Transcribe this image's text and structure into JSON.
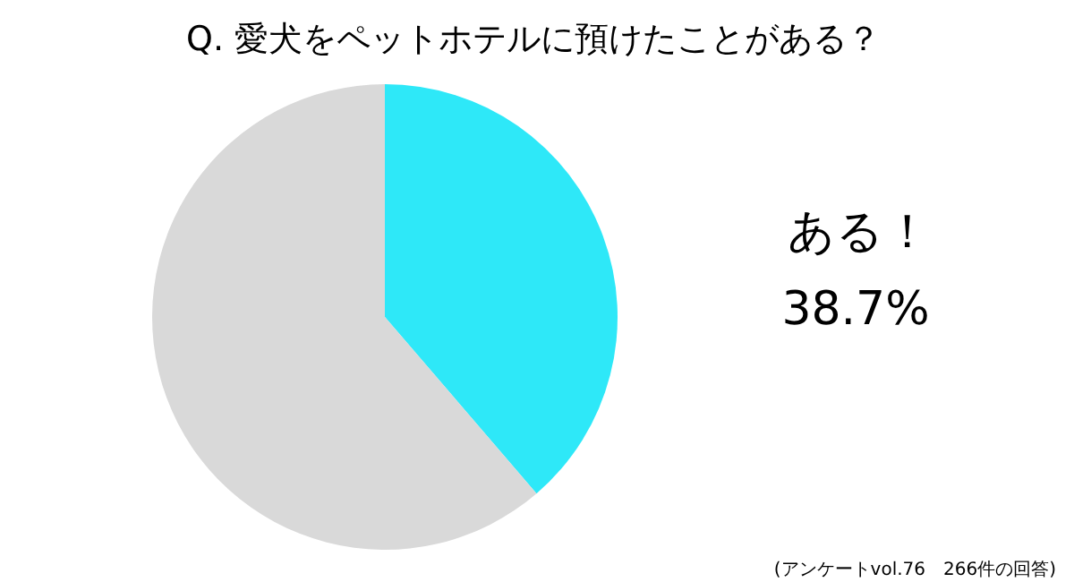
{
  "chart_data": {
    "type": "pie",
    "title": "Q.  愛犬をペットホテルに預けたことがある？",
    "categories": [
      "ある！",
      null
    ],
    "values": [
      38.7,
      61.3
    ],
    "colors": [
      "#2ee8f8",
      "#d9d9d9"
    ],
    "value_labels": [
      "38.7%",
      null
    ],
    "annotations": [
      "(アンケートvol.76　266件の回答)"
    ]
  }
}
